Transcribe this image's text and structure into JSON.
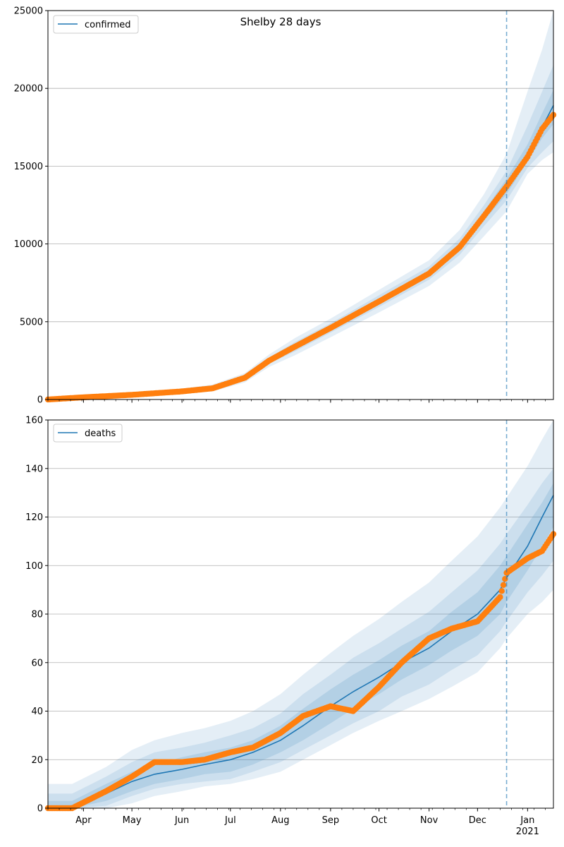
{
  "figure": {
    "title": "Shelby 28 days"
  },
  "colors": {
    "line": "#1f77b4",
    "observed": "#ff7f0e",
    "band": "#1f77b4",
    "grid": "#b0b0b0",
    "forecast_marker": "#1f77b4"
  },
  "x_ticks": {
    "months": [
      "Apr",
      "May",
      "Jun",
      "Jul",
      "Aug",
      "Sep",
      "Oct",
      "Nov",
      "Dec",
      "Jan"
    ],
    "year_label": "2021"
  },
  "chart_data": [
    {
      "type": "line",
      "title": "Shelby 28 days",
      "series": [
        {
          "name": "confirmed",
          "kind": "model-fit",
          "x": [
            "2020-03-10",
            "2020-04-01",
            "2020-05-01",
            "2020-06-01",
            "2020-06-20",
            "2020-07-10",
            "2020-07-25",
            "2020-08-10",
            "2020-09-01",
            "2020-10-01",
            "2020-11-01",
            "2020-11-20",
            "2020-12-05",
            "2020-12-19",
            "2021-01-01",
            "2021-01-10",
            "2021-01-17"
          ],
          "y": [
            0,
            150,
            300,
            520,
            720,
            1400,
            2500,
            3400,
            4600,
            6300,
            8100,
            9800,
            11800,
            13700,
            15700,
            17500,
            18900
          ]
        },
        {
          "name": "observed",
          "kind": "points",
          "x": [
            "2020-03-10",
            "2020-04-01",
            "2020-05-01",
            "2020-06-01",
            "2020-06-20",
            "2020-07-10",
            "2020-07-25",
            "2020-08-10",
            "2020-09-01",
            "2020-10-01",
            "2020-11-01",
            "2020-11-20",
            "2020-12-05",
            "2020-12-19",
            "2021-01-01",
            "2021-01-10",
            "2021-01-17"
          ],
          "y": [
            0,
            140,
            300,
            520,
            720,
            1400,
            2500,
            3400,
            4600,
            6300,
            8100,
            9800,
            11800,
            13700,
            15600,
            17400,
            18300
          ]
        }
      ],
      "bands": {
        "x": [
          "2020-03-10",
          "2020-04-01",
          "2020-05-01",
          "2020-06-01",
          "2020-06-20",
          "2020-07-10",
          "2020-07-25",
          "2020-08-10",
          "2020-09-01",
          "2020-10-01",
          "2020-11-01",
          "2020-11-20",
          "2020-12-05",
          "2020-12-19",
          "2021-01-01",
          "2021-01-10",
          "2021-01-17"
        ],
        "outer_upper": [
          40,
          250,
          420,
          700,
          960,
          1700,
          2900,
          3950,
          5200,
          7050,
          8950,
          10900,
          13200,
          15800,
          19800,
          22500,
          25000
        ],
        "outer_lower": [
          0,
          80,
          200,
          380,
          520,
          1100,
          2100,
          2850,
          4000,
          5600,
          7300,
          8800,
          10500,
          12100,
          14500,
          15400,
          15900
        ],
        "mid_upper": [
          20,
          200,
          360,
          610,
          840,
          1550,
          2700,
          3700,
          4900,
          6700,
          8550,
          10350,
          12500,
          14700,
          17600,
          19800,
          21500
        ],
        "mid_lower": [
          0,
          110,
          250,
          440,
          600,
          1250,
          2300,
          3100,
          4300,
          5950,
          7700,
          9300,
          11150,
          12800,
          14900,
          15900,
          16600
        ],
        "inner_upper": [
          10,
          170,
          330,
          560,
          780,
          1470,
          2600,
          3550,
          4750,
          6500,
          8300,
          10050,
          12100,
          14200,
          16400,
          18400,
          19900
        ],
        "inner_lower": [
          0,
          130,
          270,
          480,
          660,
          1330,
          2400,
          3250,
          4450,
          6100,
          7900,
          9550,
          11500,
          13200,
          15300,
          16800,
          17700
        ]
      },
      "ylim": [
        0,
        25000
      ],
      "y_ticks": [
        "0",
        "5000",
        "10000",
        "15000",
        "20000",
        "25000"
      ],
      "xlim": [
        "2020-03-10",
        "2021-01-17"
      ],
      "forecast_start": "2020-12-19",
      "legend": {
        "entries": [
          "confirmed"
        ],
        "placement": "upper-left"
      },
      "grid": "horizontal"
    },
    {
      "type": "line",
      "series": [
        {
          "name": "deaths",
          "kind": "model-fit",
          "x": [
            "2020-03-10",
            "2020-03-25",
            "2020-04-15",
            "2020-05-01",
            "2020-05-15",
            "2020-06-01",
            "2020-06-15",
            "2020-07-01",
            "2020-07-15",
            "2020-08-01",
            "2020-08-15",
            "2020-09-01",
            "2020-09-15",
            "2020-10-01",
            "2020-10-15",
            "2020-11-01",
            "2020-11-15",
            "2020-12-01",
            "2020-12-15",
            "2020-12-19",
            "2021-01-01",
            "2021-01-10",
            "2021-01-17"
          ],
          "y": [
            0,
            1,
            6,
            11,
            14,
            16,
            18,
            20,
            23,
            28,
            34,
            42,
            48,
            54,
            60,
            66,
            73,
            80,
            90,
            95,
            108,
            120,
            129
          ]
        },
        {
          "name": "observed",
          "kind": "points",
          "x": [
            "2020-03-10",
            "2020-03-25",
            "2020-04-15",
            "2020-05-01",
            "2020-05-15",
            "2020-06-01",
            "2020-06-15",
            "2020-07-01",
            "2020-07-15",
            "2020-08-01",
            "2020-08-15",
            "2020-09-01",
            "2020-09-15",
            "2020-10-01",
            "2020-10-15",
            "2020-11-01",
            "2020-11-15",
            "2020-12-01",
            "2020-12-15",
            "2020-12-19",
            "2021-01-01",
            "2021-01-10",
            "2021-01-17"
          ],
          "y": [
            0,
            0,
            7,
            13,
            19,
            19,
            20,
            23,
            25,
            31,
            38,
            42,
            40,
            50,
            60,
            70,
            74,
            77,
            87,
            97,
            103,
            106,
            113
          ]
        }
      ],
      "bands": {
        "x": [
          "2020-03-10",
          "2020-03-25",
          "2020-04-15",
          "2020-05-01",
          "2020-05-15",
          "2020-06-01",
          "2020-06-15",
          "2020-07-01",
          "2020-07-15",
          "2020-08-01",
          "2020-08-15",
          "2020-09-01",
          "2020-09-15",
          "2020-10-01",
          "2020-10-15",
          "2020-11-01",
          "2020-11-15",
          "2020-12-01",
          "2020-12-15",
          "2020-12-19",
          "2021-01-01",
          "2021-01-10",
          "2021-01-17"
        ],
        "outer_upper": [
          10,
          10,
          17,
          24,
          28,
          31,
          33,
          36,
          40,
          47,
          55,
          64,
          71,
          78,
          85,
          93,
          102,
          112,
          124,
          128,
          141,
          152,
          160
        ],
        "outer_lower": [
          0,
          0,
          0,
          2,
          5,
          7,
          9,
          10,
          12,
          15,
          20,
          26,
          31,
          36,
          40,
          45,
          50,
          56,
          66,
          70,
          80,
          85,
          90
        ],
        "mid_upper": [
          6,
          6,
          13,
          19,
          23,
          25,
          27,
          30,
          33,
          39,
          47,
          55,
          62,
          68,
          74,
          81,
          89,
          98,
          109,
          113,
          125,
          134,
          140
        ],
        "mid_lower": [
          0,
          0,
          1,
          5,
          8,
          10,
          11,
          12,
          15,
          19,
          24,
          30,
          35,
          40,
          46,
          51,
          57,
          63,
          73,
          77,
          89,
          96,
          102
        ],
        "inner_upper": [
          3,
          3,
          10,
          15,
          18,
          21,
          23,
          25,
          28,
          34,
          41,
          49,
          55,
          61,
          67,
          73,
          81,
          89,
          100,
          104,
          117,
          126,
          134
        ],
        "inner_lower": [
          0,
          0,
          3,
          7,
          10,
          12,
          14,
          15,
          18,
          23,
          28,
          35,
          41,
          47,
          53,
          59,
          65,
          71,
          80,
          85,
          98,
          108,
          116
        ]
      },
      "ylim": [
        0,
        160
      ],
      "y_ticks": [
        "0",
        "20",
        "40",
        "60",
        "80",
        "100",
        "120",
        "140",
        "160"
      ],
      "xlim": [
        "2020-03-10",
        "2021-01-17"
      ],
      "forecast_start": "2020-12-19",
      "legend": {
        "entries": [
          "deaths"
        ],
        "placement": "upper-left"
      },
      "grid": "horizontal"
    }
  ]
}
